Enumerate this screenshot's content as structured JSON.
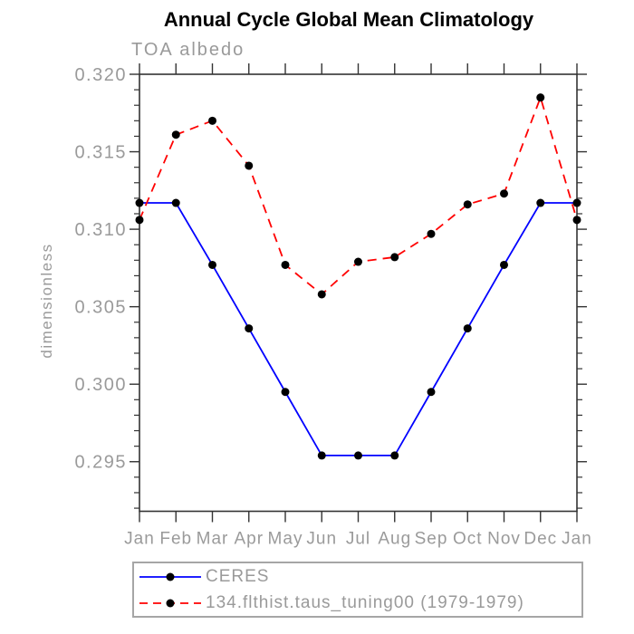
{
  "chart_data": {
    "type": "line",
    "title": "Annual Cycle Global Mean Climatology",
    "subtitle": "TOA albedo",
    "ylabel": "dimensionless",
    "xlabel": "",
    "x_categories": [
      "Jan",
      "Feb",
      "Mar",
      "Apr",
      "May",
      "Jun",
      "Jul",
      "Aug",
      "Sep",
      "Oct",
      "Nov",
      "Dec",
      "Jan"
    ],
    "ylim": [
      0.2918,
      0.32
    ],
    "yticks_major": [
      0.295,
      0.3,
      0.305,
      0.31,
      0.315,
      0.32
    ],
    "ytick_labels": [
      "0.295",
      "0.300",
      "0.305",
      "0.310",
      "0.315",
      "0.320"
    ],
    "minor_tick_step": 0.001,
    "grid": false,
    "legend_position": "bottom",
    "series": [
      {
        "name": "CERES",
        "color": "#0000ff",
        "line_style": "solid",
        "marker": "circle",
        "marker_color": "#000000",
        "values": [
          0.3117,
          0.3117,
          0.3077,
          0.3036,
          0.2995,
          0.2954,
          0.2954,
          0.2954,
          0.2995,
          0.3036,
          0.3077,
          0.3117,
          0.3117
        ]
      },
      {
        "name": "134.flthist.taus_tuning00 (1979-1979)",
        "color": "#ff0000",
        "line_style": "dashed",
        "marker": "circle",
        "marker_color": "#000000",
        "values": [
          0.3106,
          0.3161,
          0.317,
          0.3141,
          0.3077,
          0.3058,
          0.3079,
          0.3082,
          0.3097,
          0.3116,
          0.3123,
          0.3185,
          0.3106
        ]
      }
    ]
  },
  "colors": {
    "axis": "#333333",
    "label": "#9a9a9a",
    "title": "#000000",
    "legend_border": "#a6a6a6",
    "series_blue": "#0000ff",
    "series_red": "#ff0000",
    "marker": "#000000"
  }
}
